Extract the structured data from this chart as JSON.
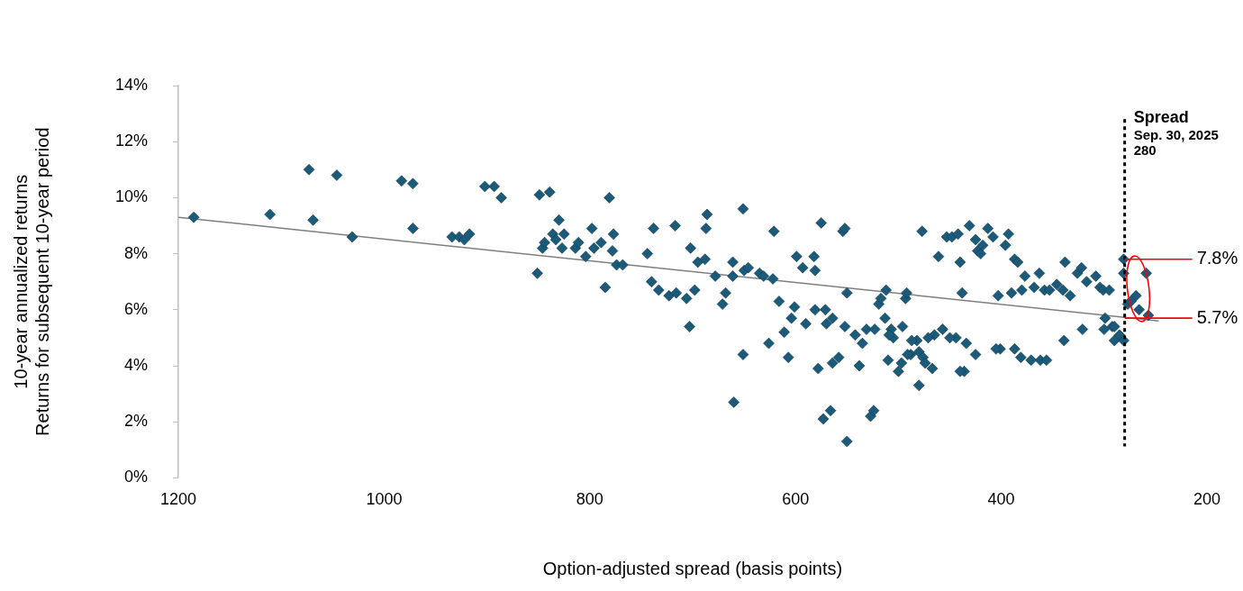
{
  "chart_data": {
    "type": "scatter",
    "xlabel": "Option-adjusted spread (basis points)",
    "ylabel": "10-year annualized returns\nReturns for subsequent 10-year period",
    "xlim": [
      1200,
      200
    ],
    "xticks": [
      1200,
      1000,
      800,
      600,
      400,
      200
    ],
    "ylim": [
      0,
      14
    ],
    "yticks": [
      {
        "value": 0,
        "label": "0%"
      },
      {
        "value": 2,
        "label": "2%"
      },
      {
        "value": 4,
        "label": "4%"
      },
      {
        "value": 6,
        "label": "6%"
      },
      {
        "value": 8,
        "label": "8%"
      },
      {
        "value": 10,
        "label": "10%"
      },
      {
        "value": 12,
        "label": "12%"
      },
      {
        "value": 14,
        "label": "14%"
      }
    ],
    "grid": false,
    "legend": false,
    "marker": "diamond",
    "series": [
      {
        "type": "scatter",
        "color": "#1b5b79",
        "x": [
          1185,
          1111,
          1073,
          1069,
          1046,
          1031,
          983,
          972,
          972,
          934,
          927,
          922,
          917,
          902,
          893,
          886,
          849,
          839,
          851,
          846,
          844,
          836,
          830,
          833,
          827,
          825,
          814,
          811,
          804,
          798,
          796,
          789,
          785,
          781,
          777,
          778,
          774,
          768,
          744,
          738,
          740,
          733,
          723,
          717,
          716,
          706,
          702,
          703,
          698,
          695,
          688,
          687,
          686,
          678,
          671,
          668,
          661,
          660,
          661,
          651,
          651,
          650,
          646,
          635,
          631,
          626,
          622,
          621,
          616,
          611,
          607,
          604,
          601,
          599,
          593,
          590,
          582,
          581,
          581,
          578,
          571,
          575,
          573,
          570,
          566,
          564,
          564,
          558,
          554,
          552,
          552,
          550,
          542,
          550,
          538,
          535,
          531,
          527,
          524,
          523,
          519,
          517,
          513,
          512,
          510,
          507,
          505,
          500,
          497,
          493,
          492,
          488,
          482,
          480,
          480,
          476,
          477,
          474,
          465,
          461,
          457,
          453,
          448,
          444,
          442,
          440,
          438,
          436,
          431,
          425,
          423,
          420,
          418,
          413,
          408,
          401,
          396,
          393,
          387,
          384,
          390,
          380,
          377,
          368,
          363,
          358,
          353,
          362,
          346,
          340,
          338,
          333,
          326,
          322,
          317,
          308,
          304,
          301,
          295,
          292,
          290,
          281,
          281,
          277,
          274,
          269,
          266,
          257,
          259,
          290,
          299,
          285,
          281,
          403,
          509,
          496,
          487,
          471,
          450,
          434,
          425,
          405,
          387,
          381,
          371,
          356,
          339,
          321,
          300,
          491,
          467,
          440
        ],
        "values": [
          9.3,
          9.4,
          11.0,
          9.2,
          10.8,
          8.6,
          10.6,
          10.5,
          8.9,
          8.6,
          8.6,
          8.5,
          8.7,
          10.4,
          10.4,
          10.0,
          10.1,
          10.2,
          7.3,
          8.2,
          8.4,
          8.7,
          9.2,
          8.5,
          8.2,
          8.7,
          8.2,
          8.4,
          7.9,
          8.9,
          8.2,
          8.4,
          6.8,
          10.0,
          8.7,
          8.1,
          7.6,
          7.6,
          8.0,
          8.9,
          7.0,
          6.7,
          6.5,
          9.0,
          6.6,
          6.4,
          8.2,
          5.4,
          6.7,
          7.7,
          7.8,
          8.9,
          9.4,
          7.2,
          6.2,
          6.6,
          7.2,
          2.7,
          7.7,
          9.6,
          4.4,
          7.4,
          7.5,
          7.3,
          7.2,
          4.8,
          7.1,
          8.8,
          6.3,
          5.2,
          4.3,
          5.7,
          6.1,
          7.9,
          7.5,
          5.5,
          7.9,
          7.4,
          6.0,
          3.9,
          6.0,
          9.1,
          2.1,
          5.5,
          2.4,
          5.7,
          4.1,
          4.3,
          8.8,
          8.9,
          5.4,
          6.6,
          5.1,
          1.3,
          4.0,
          4.8,
          5.3,
          2.2,
          2.4,
          5.3,
          6.2,
          6.4,
          5.7,
          6.7,
          4.2,
          5.3,
          5.0,
          3.8,
          4.1,
          6.4,
          6.6,
          4.4,
          4.9,
          4.5,
          3.3,
          4.3,
          8.8,
          4.1,
          5.1,
          7.9,
          5.3,
          8.6,
          8.6,
          5.0,
          8.7,
          7.7,
          6.6,
          3.8,
          9.0,
          8.5,
          8.1,
          8.0,
          8.3,
          8.9,
          8.6,
          4.6,
          8.3,
          8.7,
          7.8,
          7.7,
          6.6,
          6.7,
          7.2,
          6.8,
          7.3,
          6.7,
          6.7,
          4.2,
          6.9,
          6.7,
          7.7,
          6.5,
          7.3,
          7.5,
          7.0,
          7.2,
          6.8,
          6.7,
          6.7,
          5.4,
          5.4,
          7.8,
          7.3,
          6.2,
          6.3,
          6.5,
          6.0,
          5.8,
          7.3,
          4.9,
          5.7,
          5.1,
          4.9,
          6.5,
          5.1,
          5.4,
          4.9,
          5.0,
          5.0,
          4.8,
          4.4,
          4.6,
          4.6,
          4.3,
          4.2,
          4.2,
          4.9,
          5.3,
          5.3,
          4.4,
          3.9,
          3.8
        ]
      },
      {
        "type": "line",
        "color": "#7f7f7f",
        "marker": "none",
        "x": [
          1200,
          247
        ],
        "values": [
          9.3,
          5.6
        ]
      }
    ],
    "ref_lines": [
      {
        "axis": "x",
        "value": 280,
        "label": "Spread",
        "color": "#000000",
        "line_style": "dotted"
      }
    ],
    "annotations": [
      "Sep. 30, 2025",
      "280",
      {
        "text": "7.8%",
        "x": 280,
        "y": 7.8
      },
      {
        "text": "5.7%",
        "x": 280,
        "y": 5.7
      }
    ]
  }
}
